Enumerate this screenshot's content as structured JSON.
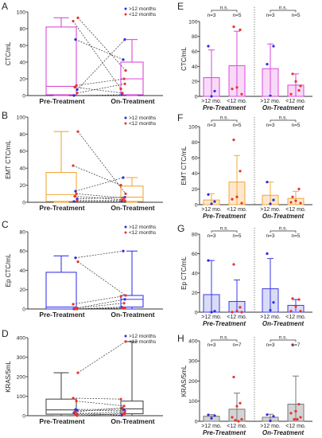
{
  "chart_data": [
    {
      "panel": "A",
      "type": "box",
      "ylabel": "CTC/mL",
      "ylim": [
        0,
        100
      ],
      "yticks": [
        0,
        20,
        40,
        60,
        80,
        100
      ],
      "categories": [
        "Pre-Treatment",
        "On-Treatment"
      ],
      "color": "#d84bd8",
      "legend_position": "top-right",
      "boxes": [
        {
          "min": 0,
          "q1": 1,
          "median": 11,
          "q3": 82,
          "max": 93
        },
        {
          "min": 0,
          "q1": 1,
          "median": 20,
          "q3": 40,
          "max": 67
        }
      ],
      "series": [
        {
          "name": ">12 months",
          "color": "#2a2ae8",
          "pairs": [
            [
              67,
              43
            ],
            [
              7,
              67
            ],
            [
              0,
              1
            ]
          ]
        },
        {
          "name": "<12 months",
          "color": "#e8322f",
          "pairs": [
            [
              93,
              30
            ],
            [
              89,
              8
            ],
            [
              12,
              20
            ],
            [
              10,
              3
            ],
            [
              3,
              14
            ]
          ]
        }
      ]
    },
    {
      "panel": "B",
      "type": "box",
      "ylabel": "EMT CTC/mL",
      "ylim": [
        0,
        100
      ],
      "yticks": [
        0,
        20,
        40,
        60,
        80,
        100
      ],
      "categories": [
        "Pre-Treatment",
        "On-Treatment"
      ],
      "color": "#f4a83c",
      "legend_position": "top-right",
      "boxes": [
        {
          "min": 0,
          "q1": 1,
          "median": 9,
          "q3": 35,
          "max": 83
        },
        {
          "min": 0,
          "q1": 1,
          "median": 6,
          "q3": 19,
          "max": 29
        }
      ],
      "series": [
        {
          "name": ">12 months",
          "color": "#2a2ae8",
          "pairs": [
            [
              13,
              29
            ],
            [
              4,
              6
            ],
            [
              1,
              1
            ]
          ]
        },
        {
          "name": "<12 months",
          "color": "#e8322f",
          "pairs": [
            [
              83,
              10
            ],
            [
              43,
              20
            ],
            [
              10,
              5
            ],
            [
              7,
              3
            ],
            [
              2,
              2
            ]
          ]
        }
      ]
    },
    {
      "panel": "C",
      "type": "box",
      "ylabel": "Ep CTC/mL",
      "ylim": [
        0,
        80
      ],
      "yticks": [
        0,
        20,
        40,
        60,
        80
      ],
      "categories": [
        "Pre-Treatment",
        "On-Treatment"
      ],
      "color": "#3b3be6",
      "legend_position": "top-right",
      "boxes": [
        {
          "min": 0,
          "q1": 0,
          "median": 2,
          "q3": 38,
          "max": 55
        },
        {
          "min": 0,
          "q1": 2,
          "median": 10,
          "q3": 14,
          "max": 60
        }
      ],
      "series": [
        {
          "name": ">12 months",
          "color": "#2a2ae8",
          "pairs": [
            [
              53,
              60
            ],
            [
              1,
              10
            ],
            [
              0,
              2
            ]
          ]
        },
        {
          "name": "<12 months",
          "color": "#e8322f",
          "pairs": [
            [
              49,
              14
            ],
            [
              5,
              13
            ],
            [
              1,
              6
            ],
            [
              0,
              1
            ],
            [
              0,
              1
            ]
          ]
        }
      ]
    },
    {
      "panel": "D",
      "type": "box",
      "ylabel": "KRAS/5mL",
      "ylim": [
        0,
        400
      ],
      "yticks": [
        0,
        100,
        200,
        300,
        400
      ],
      "categories": [
        "Pre-Treatment",
        "On-Treatment"
      ],
      "color": "#4d4d4d",
      "legend_position": "top-right",
      "boxes": [
        {
          "min": 0,
          "q1": 8,
          "median": 30,
          "q3": 85,
          "max": 220
        },
        {
          "min": 0,
          "q1": 10,
          "median": 35,
          "q3": 75,
          "max": 380
        }
      ],
      "series": [
        {
          "name": ">12 months",
          "color": "#2a2ae8",
          "pairs": [
            [
              32,
              33
            ],
            [
              28,
              25
            ],
            [
              15,
              2
            ]
          ]
        },
        {
          "name": "<12 months",
          "color": "#e8322f",
          "pairs": [
            [
              220,
              380
            ],
            [
              90,
              85
            ],
            [
              75,
              50
            ],
            [
              20,
              40
            ],
            [
              10,
              20
            ],
            [
              5,
              10
            ],
            [
              0,
              10
            ]
          ]
        }
      ]
    },
    {
      "panel": "E",
      "type": "bar",
      "ylabel": "CTC/mL",
      "ylim": [
        0,
        100
      ],
      "yticks": [
        0,
        20,
        40,
        60,
        80,
        100
      ],
      "color": "#d84bd8",
      "fill": "#f8d9f8",
      "groups": [
        {
          "label": "Pre-Treatment",
          "significance": "n.s.",
          "bars": [
            {
              "label": ">12 mo.",
              "n": "n=3",
              "mean": 25,
              "error_upper": 62,
              "point_color": "#2a2ae8",
              "points": [
                67,
                7,
                0
              ]
            },
            {
              "label": "<12 mo.",
              "n": "n=5",
              "mean": 41,
              "error_upper": 87,
              "point_color": "#e8322f",
              "points": [
                93,
                89,
                12,
                10,
                3
              ]
            }
          ]
        },
        {
          "label": "On-Treatment",
          "significance": "n.s.",
          "bars": [
            {
              "label": ">12 mo.",
              "n": "n=3",
              "mean": 37,
              "error_upper": 70,
              "point_color": "#2a2ae8",
              "points": [
                43,
                67,
                1
              ]
            },
            {
              "label": "<12 mo.",
              "n": "n=5",
              "mean": 15,
              "error_upper": 30,
              "point_color": "#e8322f",
              "points": [
                30,
                8,
                20,
                3,
                14
              ]
            }
          ]
        }
      ]
    },
    {
      "panel": "F",
      "type": "bar",
      "ylabel": "EMT CTC/mL",
      "ylim": [
        0,
        100
      ],
      "yticks": [
        0,
        20,
        40,
        60,
        80,
        100
      ],
      "color": "#f4a83c",
      "fill": "#fde8cc",
      "groups": [
        {
          "label": "Pre-Treatment",
          "significance": "n.s.",
          "bars": [
            {
              "label": ">12 mo.",
              "n": "n=3",
              "mean": 6,
              "error_upper": 14,
              "point_color": "#2a2ae8",
              "points": [
                13,
                4,
                1
              ]
            },
            {
              "label": "<12 mo.",
              "n": "n=5",
              "mean": 29,
              "error_upper": 63,
              "point_color": "#e8322f",
              "points": [
                83,
                43,
                10,
                7,
                2
              ]
            }
          ]
        },
        {
          "label": "On-Treatment",
          "significance": "n.s.",
          "bars": [
            {
              "label": ">12 mo.",
              "n": "n=3",
              "mean": 12,
              "error_upper": 29,
              "point_color": "#2a2ae8",
              "points": [
                29,
                6,
                1
              ]
            },
            {
              "label": "<12 mo.",
              "n": "n=5",
              "mean": 8,
              "error_upper": 17,
              "point_color": "#e8322f",
              "points": [
                10,
                20,
                5,
                3,
                2
              ]
            }
          ]
        }
      ]
    },
    {
      "panel": "G",
      "type": "bar",
      "ylabel": "Ep CTC/mL",
      "ylim": [
        0,
        80
      ],
      "yticks": [
        0,
        20,
        40,
        60,
        80
      ],
      "color": "#3b3be6",
      "fill": "#d9dcf6",
      "groups": [
        {
          "label": "Pre-Treatment",
          "significance": "n.s.",
          "bars": [
            {
              "label": ">12 mo.",
              "n": "n=3",
              "mean": 18,
              "error_upper": 53,
              "point_color": "#2a2ae8",
              "points": [
                53,
                1,
                0
              ]
            },
            {
              "label": "<12 mo.",
              "n": "n=5",
              "mean": 11,
              "error_upper": 33,
              "point_color": "#e8322f",
              "points": [
                49,
                5,
                1,
                0,
                0
              ]
            }
          ]
        },
        {
          "label": "On-Treatment",
          "significance": "n.s.",
          "bars": [
            {
              "label": ">12 mo.",
              "n": "n=3",
              "mean": 24,
              "error_upper": 55,
              "point_color": "#2a2ae8",
              "points": [
                60,
                10,
                2
              ]
            },
            {
              "label": "<12 mo.",
              "n": "n=5",
              "mean": 7,
              "error_upper": 13,
              "point_color": "#e8322f",
              "points": [
                14,
                13,
                6,
                1,
                1
              ]
            }
          ]
        }
      ]
    },
    {
      "panel": "H",
      "type": "bar",
      "ylabel": "KRAS/5mL",
      "ylim": [
        0,
        400
      ],
      "yticks": [
        0,
        100,
        200,
        300,
        400
      ],
      "color": "#7a7a7a",
      "fill": "#d4d4d4",
      "groups": [
        {
          "label": "Pre-Treatment",
          "significance": "n.s.",
          "bars": [
            {
              "label": ">12 mo.",
              "n": "n=3",
              "mean": 25,
              "error_upper": 33,
              "point_color": "#2a2ae8",
              "points": [
                32,
                28,
                15
              ]
            },
            {
              "label": "<12 mo.",
              "n": "n=7",
              "mean": 60,
              "error_upper": 140,
              "point_color": "#e8322f",
              "points": [
                220,
                90,
                75,
                20,
                10,
                5,
                0
              ]
            }
          ]
        },
        {
          "label": "On-Treatment",
          "significance": "n.s.",
          "bars": [
            {
              "label": ">12 mo.",
              "n": "n=3",
              "mean": 20,
              "error_upper": 35,
              "point_color": "#2a2ae8",
              "points": [
                33,
                25,
                2
              ]
            },
            {
              "label": "<12 mo.",
              "n": "n=7",
              "mean": 85,
              "error_upper": 225,
              "point_color": "#e8322f",
              "points": [
                380,
                85,
                50,
                40,
                20,
                10,
                10
              ]
            }
          ]
        }
      ]
    }
  ]
}
